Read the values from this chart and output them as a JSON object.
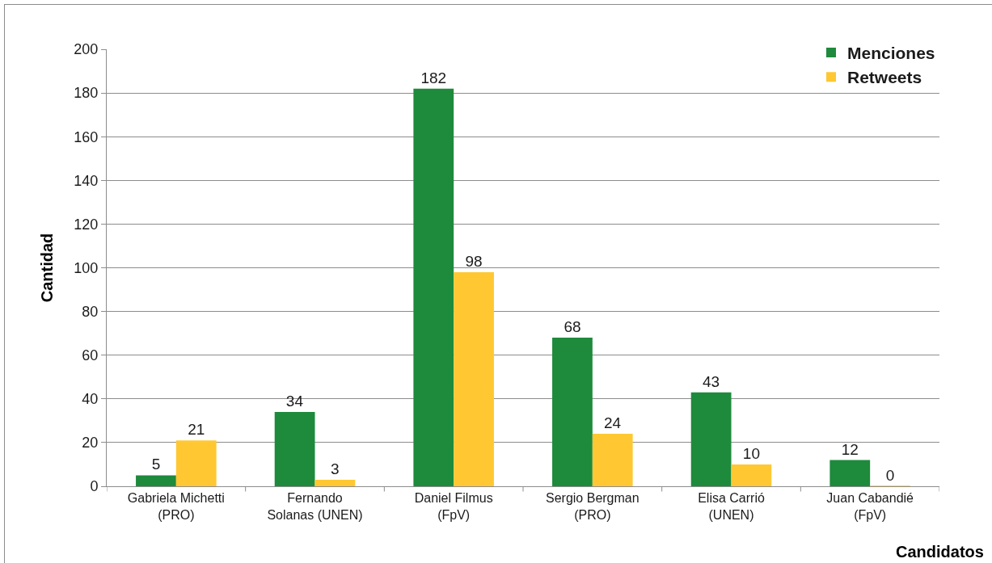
{
  "chart_data": {
    "type": "bar",
    "xlabel": "Candidatos",
    "ylabel": "Cantidad",
    "categories": [
      "Gabriela Michetti\n(PRO)",
      "Fernando\nSolanas (UNEN)",
      "Daniel Filmus\n(FpV)",
      "Sergio Bergman\n(PRO)",
      "Elisa Carrió\n(UNEN)",
      "Juan Cabandié\n(FpV)"
    ],
    "series": [
      {
        "name": "Menciones",
        "color": "#1e8a3c",
        "values": [
          5,
          34,
          182,
          68,
          43,
          12
        ]
      },
      {
        "name": "Retweets",
        "color": "#ffc832",
        "values": [
          21,
          3,
          98,
          24,
          10,
          0
        ]
      }
    ],
    "ylim": [
      0,
      200
    ],
    "yticks": [
      0,
      20,
      40,
      60,
      80,
      100,
      120,
      140,
      160,
      180,
      200
    ],
    "grid": "y",
    "legend": "top right",
    "data_labels": true
  }
}
